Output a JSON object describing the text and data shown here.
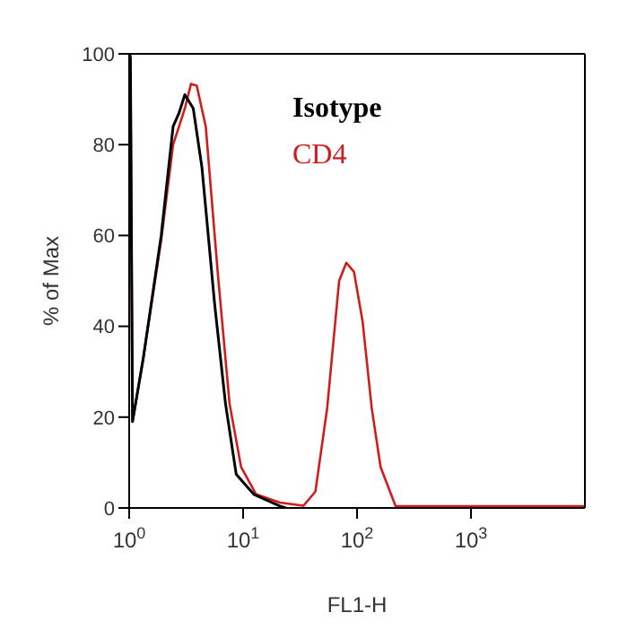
{
  "chart_data": {
    "type": "line",
    "xlabel": "FL1-H",
    "ylabel": "% of Max",
    "log": "x",
    "xlim": [
      1,
      10000
    ],
    "xticks": [
      {
        "value": 1,
        "label": "10$^{0}$"
      },
      {
        "value": 10,
        "label": "10$^{1}$"
      },
      {
        "value": 100,
        "label": "10$^{2}$"
      },
      {
        "value": 1000,
        "label": "10$^{3}$"
      }
    ],
    "ylim": [
      0,
      100
    ],
    "yticks": [
      0,
      20,
      40,
      60,
      80,
      100
    ],
    "legend": "top",
    "marker": "none",
    "line_style": "solid",
    "series": [
      {
        "name": "Isotype",
        "color": "#000000",
        "x": [
          1,
          1.025,
          1.07,
          1.33,
          1.91,
          2.43,
          2.74,
          3.08,
          3.65,
          4.35,
          5.62,
          7.0,
          8.7,
          12.4,
          21,
          23.7
        ],
        "values": [
          100,
          99,
          19,
          33,
          60,
          84,
          87,
          91,
          88,
          75,
          45,
          23,
          7.4,
          3,
          0.4,
          0
        ]
      },
      {
        "name": "CD4",
        "color": "#d01c1c",
        "x": [
          1,
          1.025,
          1.07,
          1.33,
          1.91,
          2.43,
          2.74,
          3.08,
          3.49,
          3.92,
          4.7,
          5.98,
          7.6,
          9.6,
          13,
          21,
          33.9,
          43.1,
          54.7,
          69.6,
          80.5,
          94,
          112,
          134.5,
          161,
          218,
          10000
        ],
        "values": [
          100,
          100,
          19,
          33,
          59,
          80,
          84,
          88,
          93.4,
          93,
          84,
          52,
          23,
          9,
          3,
          1.2,
          0.5,
          3.6,
          22,
          50,
          54,
          52,
          41,
          22,
          9,
          0.4,
          0.4
        ]
      }
    ]
  }
}
